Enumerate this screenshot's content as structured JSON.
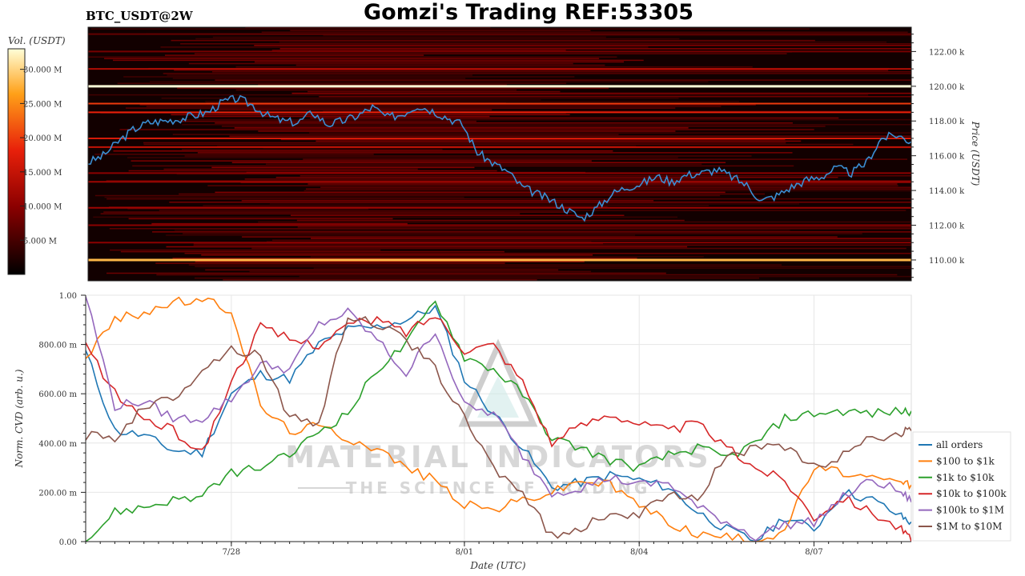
{
  "header": {
    "pair": "BTC_USDT@2W",
    "title": "Gomzi's Trading REF:53305"
  },
  "watermark": {
    "line1": "MATERIAL INDICATORS",
    "line2": "THE SCIENCE OF TRADING"
  },
  "colors": {
    "all_orders": "#1f77b4",
    "r100_1k": "#ff7f0e",
    "r1k_10k": "#2ca02c",
    "r10k_100k": "#d62728",
    "r100k_1m": "#9467bd",
    "r1m_10m": "#8c564b",
    "heatmap_bg": "#120000",
    "price_line": "#3b8fd4"
  },
  "chart_data": [
    {
      "type": "heatmap",
      "title": "",
      "colorbar": {
        "label": "Vol. (USDT)",
        "range": [
          0,
          33000000
        ],
        "ticks": [
          "5.000 M",
          "10.000 M",
          "15.000 M",
          "20.000 M",
          "25.000 M",
          "30.000 M"
        ],
        "tick_values": [
          5000000,
          10000000,
          15000000,
          20000000,
          25000000,
          30000000
        ]
      },
      "y_axis": {
        "label": "Price (USDT)",
        "range": [
          108800,
          123400
        ],
        "ticks": [
          "110.00 k",
          "112.00 k",
          "114.00 k",
          "116.00 k",
          "118.00 k",
          "120.00 k",
          "122.00 k"
        ],
        "tick_values": [
          110000,
          112000,
          114000,
          116000,
          118000,
          120000,
          122000
        ]
      },
      "x_range": [
        "2025-07-25 12:00",
        "2025-08-08 04:00"
      ],
      "price_series": {
        "name": "",
        "x": [
          "7/25 12:00",
          "7/25 18:00",
          "7/26 00:00",
          "7/26 06:00",
          "7/26 12:00",
          "7/26 18:00",
          "7/27 00:00",
          "7/27 06:00",
          "7/27 12:00",
          "7/27 18:00",
          "7/28 00:00",
          "7/28 06:00",
          "7/28 12:00",
          "7/28 18:00",
          "7/29 00:00",
          "7/29 06:00",
          "7/29 12:00",
          "7/29 18:00",
          "7/30 00:00",
          "7/30 06:00",
          "7/30 12:00",
          "7/30 18:00",
          "7/31 00:00",
          "7/31 06:00",
          "7/31 12:00",
          "7/31 18:00",
          "8/01 00:00",
          "8/01 06:00",
          "8/01 12:00",
          "8/01 18:00",
          "8/02 00:00",
          "8/02 06:00",
          "8/02 12:00",
          "8/02 18:00",
          "8/03 00:00",
          "8/03 06:00",
          "8/03 12:00",
          "8/03 18:00",
          "8/04 00:00",
          "8/04 06:00",
          "8/04 12:00",
          "8/04 18:00",
          "8/05 00:00",
          "8/05 06:00",
          "8/05 12:00",
          "8/05 18:00",
          "8/06 00:00",
          "8/06 06:00",
          "8/06 12:00",
          "8/06 18:00",
          "8/07 00:00",
          "8/07 06:00",
          "8/07 12:00",
          "8/07 18:00",
          "8/08 00:00",
          "8/08 04:00"
        ],
        "y": [
          115600,
          116000,
          116800,
          117500,
          117900,
          118000,
          118100,
          118300,
          118500,
          119100,
          119300,
          118900,
          118300,
          118000,
          117900,
          118500,
          117800,
          118000,
          118300,
          118800,
          118200,
          118400,
          118900,
          118600,
          118200,
          117800,
          116200,
          115600,
          115100,
          114200,
          113800,
          113400,
          112900,
          112400,
          113000,
          113800,
          114200,
          114400,
          114800,
          114500,
          114900,
          115000,
          115200,
          114800,
          114300,
          113400,
          113700,
          114200,
          114600,
          114800,
          115300,
          115000,
          115600,
          117000,
          117200,
          116800
        ]
      },
      "liquidity_bands": [
        {
          "price": 120000,
          "level": 1.0
        },
        {
          "price": 110000,
          "level": 0.85
        },
        {
          "price": 119000,
          "level": 0.6
        },
        {
          "price": 118500,
          "level": 0.55
        },
        {
          "price": 117000,
          "level": 0.5
        },
        {
          "price": 121000,
          "level": 0.4
        },
        {
          "price": 116500,
          "level": 0.45
        },
        {
          "price": 114500,
          "level": 0.35
        },
        {
          "price": 113000,
          "level": 0.35
        },
        {
          "price": 111000,
          "level": 0.3
        },
        {
          "price": 122000,
          "level": 0.25
        },
        {
          "price": 115000,
          "level": 0.3
        },
        {
          "price": 112000,
          "level": 0.3
        },
        {
          "price": 123000,
          "level": 0.2
        }
      ]
    },
    {
      "type": "line",
      "title": "",
      "xlabel": "Date (UTC)",
      "ylabel": "Norm. CVD (arb. u.)",
      "ylim": [
        0,
        1
      ],
      "y_ticks": [
        "0.00",
        "200.00 m",
        "400.00 m",
        "600.00 m",
        "800.00 m",
        "1.00"
      ],
      "y_tick_values": [
        0,
        0.2,
        0.4,
        0.6,
        0.8,
        1.0
      ],
      "x_ticks": [
        "7/28",
        "8/01",
        "8/04",
        "8/07"
      ],
      "x_tick_days": [
        2.5,
        6.5,
        9.5,
        12.5
      ],
      "x_range_days": [
        0,
        14.17
      ],
      "legend_position": "bottom-right",
      "x_days": [
        0,
        0.5,
        1,
        1.5,
        2,
        2.5,
        3,
        3.5,
        4,
        4.5,
        5,
        5.5,
        6,
        6.5,
        7,
        7.5,
        8,
        8.5,
        9,
        9.5,
        10,
        10.5,
        11,
        11.5,
        12,
        12.5,
        13,
        13.5,
        14,
        14.17
      ],
      "series": [
        {
          "name": "all orders",
          "key": "all_orders",
          "values": [
            0.77,
            0.45,
            0.43,
            0.37,
            0.36,
            0.6,
            0.68,
            0.66,
            0.8,
            0.86,
            0.87,
            0.9,
            0.95,
            0.66,
            0.52,
            0.38,
            0.22,
            0.24,
            0.27,
            0.25,
            0.22,
            0.12,
            0.05,
            0.0,
            0.1,
            0.05,
            0.2,
            0.17,
            0.1,
            0.08
          ]
        },
        {
          "name": "$100 to $1k",
          "key": "r100_1k",
          "values": [
            0.75,
            0.9,
            0.93,
            0.97,
            0.98,
            0.94,
            0.55,
            0.45,
            0.47,
            0.42,
            0.38,
            0.3,
            0.25,
            0.15,
            0.13,
            0.17,
            0.2,
            0.25,
            0.23,
            0.15,
            0.08,
            0.03,
            0.02,
            0.0,
            0.05,
            0.3,
            0.28,
            0.25,
            0.24,
            0.23
          ]
        },
        {
          "name": "$1k to $10k",
          "key": "r1k_10k",
          "values": [
            0.0,
            0.12,
            0.14,
            0.17,
            0.18,
            0.28,
            0.3,
            0.35,
            0.45,
            0.52,
            0.7,
            0.8,
            0.98,
            0.75,
            0.7,
            0.6,
            0.42,
            0.38,
            0.33,
            0.3,
            0.35,
            0.38,
            0.34,
            0.4,
            0.5,
            0.52,
            0.53,
            0.52,
            0.53,
            0.53
          ]
        },
        {
          "name": "$10k to $100k",
          "key": "r10k_100k",
          "values": [
            0.8,
            0.6,
            0.5,
            0.45,
            0.36,
            0.65,
            0.87,
            0.82,
            0.8,
            0.88,
            0.9,
            0.85,
            0.92,
            0.78,
            0.8,
            0.65,
            0.4,
            0.47,
            0.52,
            0.48,
            0.45,
            0.48,
            0.38,
            0.3,
            0.25,
            0.1,
            0.18,
            0.12,
            0.05,
            0.0
          ]
        },
        {
          "name": "$100k to $1M",
          "key": "r100k_1m",
          "values": [
            1.0,
            0.55,
            0.57,
            0.5,
            0.5,
            0.58,
            0.72,
            0.7,
            0.88,
            0.93,
            0.82,
            0.68,
            0.86,
            0.55,
            0.52,
            0.35,
            0.2,
            0.22,
            0.26,
            0.23,
            0.24,
            0.14,
            0.08,
            0.02,
            0.07,
            0.08,
            0.18,
            0.25,
            0.2,
            0.16
          ]
        },
        {
          "name": "$1M to $10M",
          "key": "r1m_10m",
          "values": [
            0.43,
            0.42,
            0.55,
            0.58,
            0.7,
            0.78,
            0.76,
            0.5,
            0.48,
            0.92,
            0.88,
            0.82,
            0.7,
            0.5,
            0.3,
            0.2,
            0.02,
            0.05,
            0.12,
            0.1,
            0.2,
            0.18,
            0.35,
            0.38,
            0.38,
            0.3,
            0.35,
            0.42,
            0.44,
            0.45
          ]
        }
      ]
    }
  ]
}
